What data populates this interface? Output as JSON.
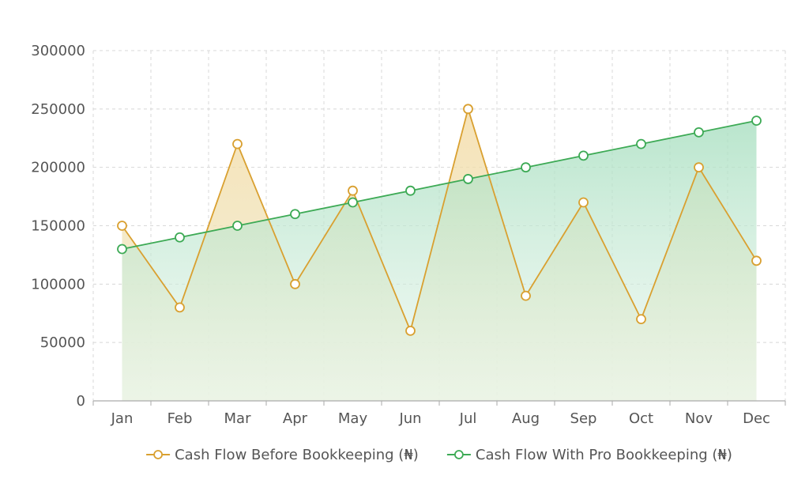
{
  "chart_data": {
    "type": "line",
    "title": "",
    "xlabel": "",
    "ylabel": "",
    "categories": [
      "Jan",
      "Feb",
      "Mar",
      "Apr",
      "May",
      "Jun",
      "Jul",
      "Aug",
      "Sep",
      "Oct",
      "Nov",
      "Dec"
    ],
    "ylim": [
      0,
      300000
    ],
    "yticks": [
      "0",
      "50000",
      "100000",
      "150000",
      "200000",
      "250000",
      "300000"
    ],
    "ytick_values": [
      0,
      50000,
      100000,
      150000,
      200000,
      250000,
      300000
    ],
    "grid": true,
    "legend_position": "bottom",
    "series": [
      {
        "name": "Cash Flow Before Bookkeeping (₦)",
        "values": [
          150000,
          80000,
          220000,
          100000,
          180000,
          60000,
          250000,
          90000,
          170000,
          70000,
          200000,
          120000
        ],
        "color": "#D9A030",
        "fill": true
      },
      {
        "name": "Cash Flow With Pro Bookkeeping (₦)",
        "values": [
          130000,
          140000,
          150000,
          160000,
          170000,
          180000,
          190000,
          200000,
          210000,
          220000,
          230000,
          240000
        ],
        "color": "#3DAA55",
        "fill": true
      }
    ]
  }
}
